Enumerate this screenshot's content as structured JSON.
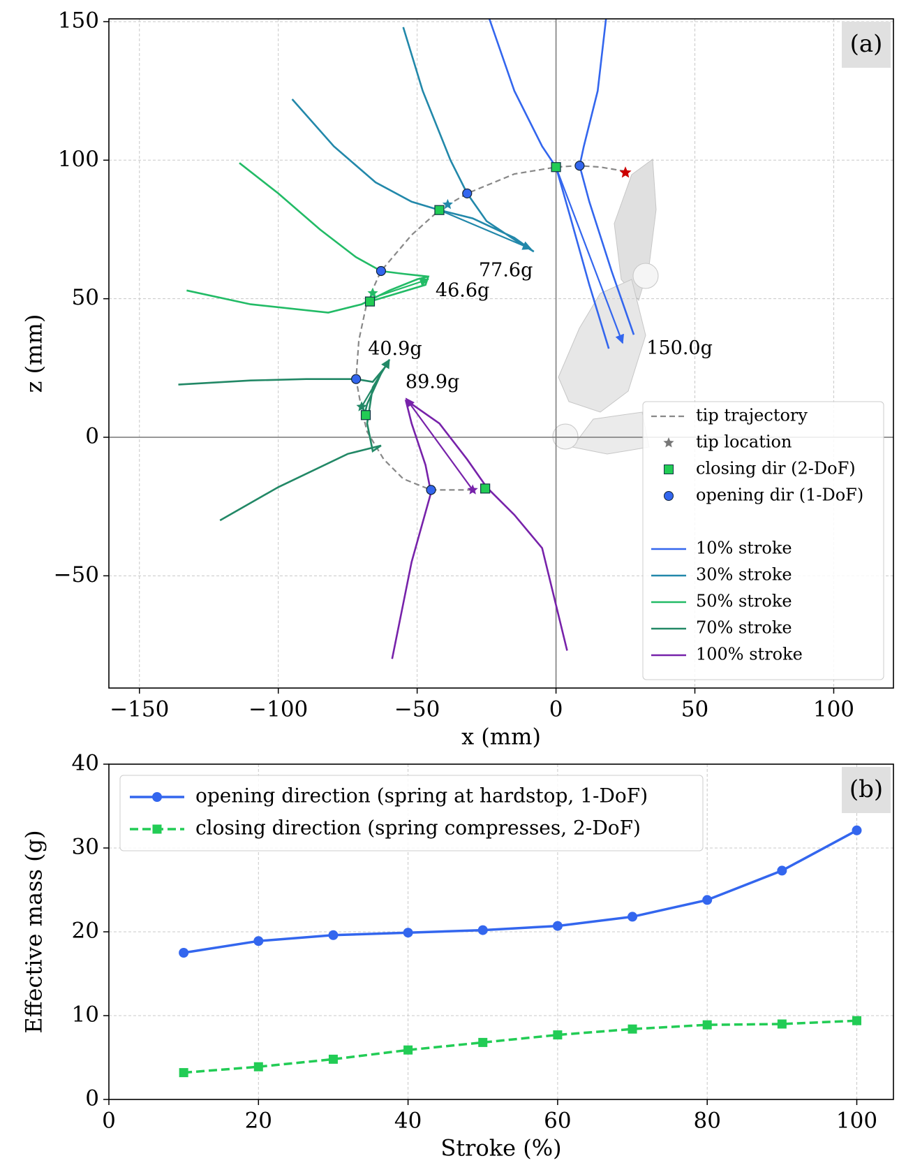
{
  "chart_data": [
    {
      "type": "trajectory",
      "panel_label": "(a)",
      "xlabel": "x (mm)",
      "ylabel": "z (mm)",
      "xlim": [
        -161,
        121.5
      ],
      "ylim": [
        -90.5,
        151
      ],
      "xticks": [
        {
          "value": -150,
          "label": "−150"
        },
        {
          "value": -100,
          "label": "−100"
        },
        {
          "value": -50,
          "label": "−50"
        },
        0,
        50,
        100
      ],
      "yticks": [
        {
          "value": -50,
          "label": "−50"
        },
        0,
        50,
        100,
        150
      ],
      "grid": true,
      "legend": "lower right",
      "trajectory": {
        "name": "tip trajectory",
        "color": "#888888",
        "x": [
          25,
          16,
          8,
          0,
          -15,
          -32,
          -42,
          -52,
          -63,
          -68,
          -71,
          -72,
          -70,
          -68,
          -62,
          -55,
          -45,
          -30
        ],
        "y": [
          96,
          97.5,
          98,
          97.5,
          95,
          88,
          82,
          73,
          60,
          49,
          35,
          21,
          10,
          2,
          -8,
          -15,
          -19,
          -19
        ]
      },
      "marker_legend": {
        "tip": {
          "name": "tip location",
          "color": "#777777"
        },
        "closing": {
          "name": "closing dir (2-DoF)",
          "color": "#22cc55"
        },
        "opening": {
          "name": "opening dir (1-DoF)",
          "color": "#3366ee"
        }
      },
      "current_tip": {
        "x": 25,
        "y": 95.5,
        "color": "#cc0000"
      },
      "series": [
        {
          "name": "10% stroke",
          "color": "#3366ee",
          "x": [
            -24,
            -15,
            -5,
            0,
            5,
            12,
            19,
            null,
            18,
            15,
            10,
            8.5,
            12,
            20,
            28
          ],
          "y": [
            151,
            125,
            105,
            97.5,
            80,
            55,
            32,
            null,
            151,
            125,
            105,
            98,
            85,
            60,
            37
          ],
          "arrow": {
            "x": [
              0,
              24
            ],
            "y": [
              97.5,
              34
            ]
          },
          "opening": {
            "x": 8.5,
            "y": 98
          },
          "closing": {
            "x": 0,
            "y": 97.5
          },
          "mass_label": {
            "text": "150.0g",
            "x": 32.6,
            "y": 31.9
          }
        },
        {
          "name": "30% stroke",
          "color": "#2288aa",
          "x": [
            -55,
            -48,
            -38,
            -32,
            -25,
            -13,
            -8,
            null,
            -95,
            -80,
            -65,
            -52,
            -42,
            -30,
            -15,
            -8
          ],
          "y": [
            148,
            125,
            100,
            88,
            78,
            70,
            67,
            null,
            122,
            105,
            92,
            85,
            82,
            79,
            72,
            67
          ],
          "arrow": {
            "x": [
              -42,
              -9
            ],
            "y": [
              82,
              68
            ]
          },
          "opening": {
            "x": -32,
            "y": 88
          },
          "closing": {
            "x": -42,
            "y": 82
          },
          "tip": {
            "x": -39,
            "y": 84
          },
          "mass_label": {
            "text": "77.6g",
            "x": -27.8,
            "y": 60
          }
        },
        {
          "name": "50% stroke",
          "color": "#22bb66",
          "x": [
            -114,
            -100,
            -85,
            -72,
            -63,
            -55,
            -46,
            -47,
            -57,
            -67,
            null,
            -133,
            -110,
            -82,
            -70,
            -60,
            -50,
            -46
          ],
          "y": [
            99,
            88,
            75,
            65,
            60,
            59,
            58,
            55,
            52,
            49,
            null,
            53,
            48,
            45,
            48,
            53,
            57,
            58
          ],
          "arrow": {
            "x": [
              -67,
              -46
            ],
            "y": [
              50,
              57
            ]
          },
          "opening": {
            "x": -63,
            "y": 60
          },
          "closing": {
            "x": -67,
            "y": 49
          },
          "tip": {
            "x": -66,
            "y": 52
          },
          "mass_label": {
            "text": "46.6g",
            "x": -43.4,
            "y": 52.7
          }
        },
        {
          "name": "70% stroke",
          "color": "#228866",
          "x": [
            -136,
            -110,
            -90,
            -72,
            -66,
            -61,
            -60,
            -63,
            -68,
            -69,
            null,
            -121,
            -100,
            -75,
            -63,
            -66,
            -68,
            -66,
            -60
          ],
          "y": [
            19,
            20.5,
            21,
            21,
            20,
            26,
            28,
            23,
            12,
            8,
            null,
            -30,
            -18,
            -6,
            -3,
            -5,
            5,
            18,
            28
          ],
          "arrow": {
            "x": [
              -70,
              -60
            ],
            "y": [
              11,
              28
            ]
          },
          "opening": {
            "x": -72,
            "y": 21
          },
          "closing": {
            "x": -68.5,
            "y": 8
          },
          "tip": {
            "x": -70,
            "y": 11
          },
          "mass_label": {
            "text": "40.9g",
            "x": -67.7,
            "y": 31.6
          }
        },
        {
          "name": "100% stroke",
          "color": "#7722aa",
          "x": [
            -59,
            -52,
            -45,
            -47,
            -52,
            -54,
            -52,
            -42,
            -32,
            -25,
            null,
            4,
            -5,
            -15,
            -25
          ],
          "y": [
            -80,
            -45,
            -20,
            -10,
            5,
            13,
            12,
            5,
            -8,
            -18,
            null,
            -77,
            -40,
            -28,
            -18
          ],
          "arrow": {
            "x": [
              -30,
              -54
            ],
            "y": [
              -19,
              14
            ]
          },
          "opening": {
            "x": -45,
            "y": -19
          },
          "closing": {
            "x": -25.5,
            "y": -18.5
          },
          "tip": {
            "x": -30,
            "y": -19
          },
          "mass_label": {
            "text": "89.9g",
            "x": -54.2,
            "y": 19.7
          }
        }
      ]
    },
    {
      "type": "line",
      "panel_label": "(b)",
      "xlabel": "Stroke (%)",
      "ylabel": "Effective mass (g)",
      "xlim": [
        0,
        104.9
      ],
      "ylim": [
        0,
        40
      ],
      "xticks": [
        0,
        20,
        40,
        60,
        80,
        100
      ],
      "yticks": [
        0,
        10,
        20,
        30,
        40
      ],
      "grid": true,
      "legend": "upper left",
      "x": [
        10,
        20,
        30,
        40,
        50,
        60,
        70,
        80,
        90,
        100
      ],
      "series": [
        {
          "name": "opening direction (spring at hardstop, 1-DoF)",
          "color": "#3366ee",
          "marker": "circle",
          "dashed": false,
          "values": [
            17.5,
            18.9,
            19.6,
            19.9,
            20.2,
            20.7,
            21.8,
            23.8,
            27.3,
            32.1
          ]
        },
        {
          "name": "closing direction (spring compresses, 2-DoF)",
          "color": "#22cc55",
          "marker": "square",
          "dashed": true,
          "values": [
            3.2,
            3.9,
            4.8,
            5.9,
            6.8,
            7.7,
            8.4,
            8.9,
            9.0,
            9.4
          ]
        }
      ]
    }
  ]
}
